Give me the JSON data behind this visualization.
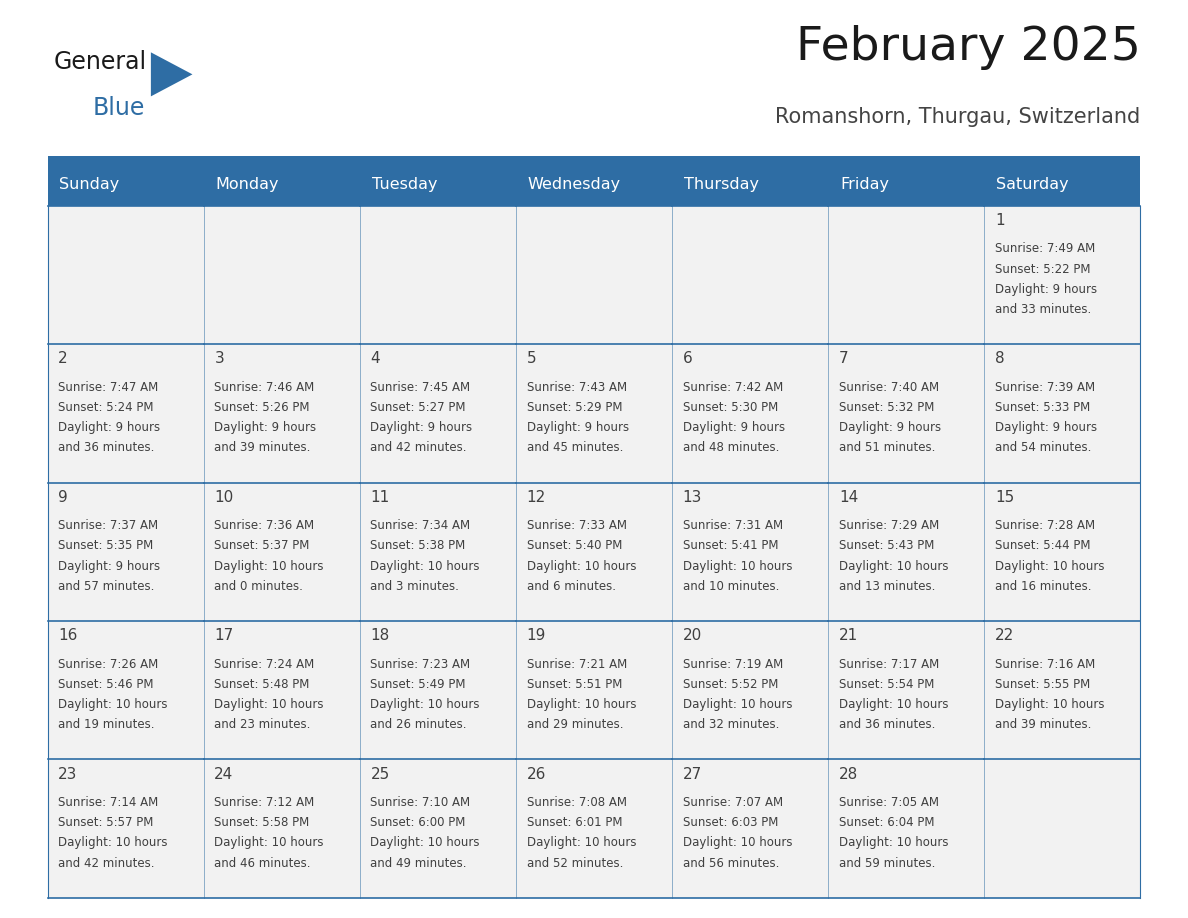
{
  "title": "February 2025",
  "subtitle": "Romanshorn, Thurgau, Switzerland",
  "days_of_week": [
    "Sunday",
    "Monday",
    "Tuesday",
    "Wednesday",
    "Thursday",
    "Friday",
    "Saturday"
  ],
  "header_bg": "#2E6DA4",
  "header_text": "#FFFFFF",
  "cell_bg": "#F2F2F2",
  "border_color": "#2E6DA4",
  "text_color": "#404040",
  "title_color": "#1a1a1a",
  "logo_general_color": "#1a1a1a",
  "logo_blue_color": "#2E6DA4",
  "calendar_data": [
    [
      null,
      null,
      null,
      null,
      null,
      null,
      {
        "day": "1",
        "sunrise": "7:49 AM",
        "sunset": "5:22 PM",
        "daylight_h": "9 hours",
        "daylight_m": "and 33 minutes."
      }
    ],
    [
      {
        "day": "2",
        "sunrise": "7:47 AM",
        "sunset": "5:24 PM",
        "daylight_h": "9 hours",
        "daylight_m": "and 36 minutes."
      },
      {
        "day": "3",
        "sunrise": "7:46 AM",
        "sunset": "5:26 PM",
        "daylight_h": "9 hours",
        "daylight_m": "and 39 minutes."
      },
      {
        "day": "4",
        "sunrise": "7:45 AM",
        "sunset": "5:27 PM",
        "daylight_h": "9 hours",
        "daylight_m": "and 42 minutes."
      },
      {
        "day": "5",
        "sunrise": "7:43 AM",
        "sunset": "5:29 PM",
        "daylight_h": "9 hours",
        "daylight_m": "and 45 minutes."
      },
      {
        "day": "6",
        "sunrise": "7:42 AM",
        "sunset": "5:30 PM",
        "daylight_h": "9 hours",
        "daylight_m": "and 48 minutes."
      },
      {
        "day": "7",
        "sunrise": "7:40 AM",
        "sunset": "5:32 PM",
        "daylight_h": "9 hours",
        "daylight_m": "and 51 minutes."
      },
      {
        "day": "8",
        "sunrise": "7:39 AM",
        "sunset": "5:33 PM",
        "daylight_h": "9 hours",
        "daylight_m": "and 54 minutes."
      }
    ],
    [
      {
        "day": "9",
        "sunrise": "7:37 AM",
        "sunset": "5:35 PM",
        "daylight_h": "9 hours",
        "daylight_m": "and 57 minutes."
      },
      {
        "day": "10",
        "sunrise": "7:36 AM",
        "sunset": "5:37 PM",
        "daylight_h": "10 hours",
        "daylight_m": "and 0 minutes."
      },
      {
        "day": "11",
        "sunrise": "7:34 AM",
        "sunset": "5:38 PM",
        "daylight_h": "10 hours",
        "daylight_m": "and 3 minutes."
      },
      {
        "day": "12",
        "sunrise": "7:33 AM",
        "sunset": "5:40 PM",
        "daylight_h": "10 hours",
        "daylight_m": "and 6 minutes."
      },
      {
        "day": "13",
        "sunrise": "7:31 AM",
        "sunset": "5:41 PM",
        "daylight_h": "10 hours",
        "daylight_m": "and 10 minutes."
      },
      {
        "day": "14",
        "sunrise": "7:29 AM",
        "sunset": "5:43 PM",
        "daylight_h": "10 hours",
        "daylight_m": "and 13 minutes."
      },
      {
        "day": "15",
        "sunrise": "7:28 AM",
        "sunset": "5:44 PM",
        "daylight_h": "10 hours",
        "daylight_m": "and 16 minutes."
      }
    ],
    [
      {
        "day": "16",
        "sunrise": "7:26 AM",
        "sunset": "5:46 PM",
        "daylight_h": "10 hours",
        "daylight_m": "and 19 minutes."
      },
      {
        "day": "17",
        "sunrise": "7:24 AM",
        "sunset": "5:48 PM",
        "daylight_h": "10 hours",
        "daylight_m": "and 23 minutes."
      },
      {
        "day": "18",
        "sunrise": "7:23 AM",
        "sunset": "5:49 PM",
        "daylight_h": "10 hours",
        "daylight_m": "and 26 minutes."
      },
      {
        "day": "19",
        "sunrise": "7:21 AM",
        "sunset": "5:51 PM",
        "daylight_h": "10 hours",
        "daylight_m": "and 29 minutes."
      },
      {
        "day": "20",
        "sunrise": "7:19 AM",
        "sunset": "5:52 PM",
        "daylight_h": "10 hours",
        "daylight_m": "and 32 minutes."
      },
      {
        "day": "21",
        "sunrise": "7:17 AM",
        "sunset": "5:54 PM",
        "daylight_h": "10 hours",
        "daylight_m": "and 36 minutes."
      },
      {
        "day": "22",
        "sunrise": "7:16 AM",
        "sunset": "5:55 PM",
        "daylight_h": "10 hours",
        "daylight_m": "and 39 minutes."
      }
    ],
    [
      {
        "day": "23",
        "sunrise": "7:14 AM",
        "sunset": "5:57 PM",
        "daylight_h": "10 hours",
        "daylight_m": "and 42 minutes."
      },
      {
        "day": "24",
        "sunrise": "7:12 AM",
        "sunset": "5:58 PM",
        "daylight_h": "10 hours",
        "daylight_m": "and 46 minutes."
      },
      {
        "day": "25",
        "sunrise": "7:10 AM",
        "sunset": "6:00 PM",
        "daylight_h": "10 hours",
        "daylight_m": "and 49 minutes."
      },
      {
        "day": "26",
        "sunrise": "7:08 AM",
        "sunset": "6:01 PM",
        "daylight_h": "10 hours",
        "daylight_m": "and 52 minutes."
      },
      {
        "day": "27",
        "sunrise": "7:07 AM",
        "sunset": "6:03 PM",
        "daylight_h": "10 hours",
        "daylight_m": "and 56 minutes."
      },
      {
        "day": "28",
        "sunrise": "7:05 AM",
        "sunset": "6:04 PM",
        "daylight_h": "10 hours",
        "daylight_m": "and 59 minutes."
      },
      null
    ]
  ]
}
